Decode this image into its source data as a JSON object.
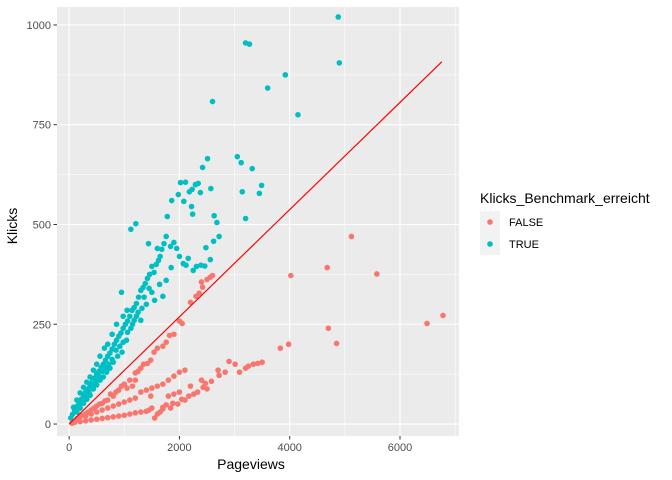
{
  "chart_data": {
    "type": "scatter",
    "title": "",
    "xlabel": "Pageviews",
    "ylabel": "Klicks",
    "xlim": [
      -220,
      7070
    ],
    "ylim": [
      -30,
      1045
    ],
    "x_ticks": [
      0,
      2000,
      4000,
      6000
    ],
    "x_tick_labels": [
      "0",
      "2000",
      "4000",
      "6000"
    ],
    "y_ticks": [
      0,
      250,
      500,
      750,
      1000
    ],
    "y_tick_labels": [
      "0",
      "250",
      "500",
      "750",
      "1000"
    ],
    "grid": true,
    "legend": {
      "title": "Klicks_Benchmark_erreicht",
      "position": "right",
      "entries": [
        {
          "label": "FALSE",
          "color": "#F8766D"
        },
        {
          "label": "TRUE",
          "color": "#00BFC4"
        }
      ]
    },
    "series": [
      {
        "name": "FALSE",
        "color": "#F8766D",
        "points": [
          [
            6780,
            272
          ],
          [
            6490,
            252
          ],
          [
            5580,
            376
          ],
          [
            5120,
            470
          ],
          [
            4850,
            202
          ],
          [
            4680,
            392
          ],
          [
            4700,
            240
          ],
          [
            4020,
            372
          ],
          [
            3980,
            200
          ],
          [
            3830,
            190
          ],
          [
            3420,
            152
          ],
          [
            3340,
            150
          ],
          [
            3250,
            145
          ],
          [
            3090,
            130
          ],
          [
            3010,
            150
          ],
          [
            2900,
            157
          ],
          [
            2830,
            130
          ],
          [
            2720,
            122
          ],
          [
            2580,
            107
          ],
          [
            2500,
            88
          ],
          [
            2470,
            102
          ],
          [
            2430,
            92
          ],
          [
            2330,
            80
          ],
          [
            2260,
            75
          ],
          [
            2170,
            70
          ],
          [
            2100,
            60
          ],
          [
            2040,
            62
          ],
          [
            1970,
            50
          ],
          [
            1880,
            52
          ],
          [
            1840,
            40
          ],
          [
            1760,
            48
          ],
          [
            1700,
            38
          ],
          [
            1650,
            30
          ],
          [
            2600,
            372
          ],
          [
            2560,
            368
          ],
          [
            2500,
            362
          ],
          [
            2420,
            343
          ],
          [
            2400,
            356
          ],
          [
            2360,
            328
          ],
          [
            2200,
            305
          ],
          [
            2300,
            320
          ],
          [
            2050,
            252
          ],
          [
            2000,
            258
          ],
          [
            1900,
            225
          ],
          [
            1820,
            222
          ],
          [
            1760,
            205
          ],
          [
            1700,
            195
          ],
          [
            1600,
            190
          ],
          [
            1540,
            180
          ],
          [
            1480,
            160
          ],
          [
            1420,
            152
          ],
          [
            1350,
            150
          ],
          [
            1300,
            140
          ],
          [
            1250,
            132
          ],
          [
            1200,
            128
          ],
          [
            1100,
            110
          ],
          [
            1000,
            100
          ],
          [
            950,
            95
          ],
          [
            1500,
            40
          ],
          [
            1450,
            35
          ],
          [
            1400,
            32
          ],
          [
            1300,
            30
          ],
          [
            1200,
            28
          ],
          [
            1100,
            25
          ],
          [
            1000,
            22
          ],
          [
            900,
            20
          ],
          [
            800,
            18
          ],
          [
            700,
            16
          ],
          [
            600,
            14
          ],
          [
            500,
            12
          ],
          [
            400,
            10
          ],
          [
            300,
            8
          ],
          [
            200,
            6
          ],
          [
            100,
            4
          ],
          [
            50,
            2
          ],
          [
            1200,
            110
          ],
          [
            1150,
            95
          ],
          [
            1050,
            90
          ],
          [
            900,
            85
          ],
          [
            850,
            80
          ],
          [
            800,
            70
          ],
          [
            750,
            75
          ],
          [
            700,
            60
          ],
          [
            650,
            58
          ],
          [
            600,
            52
          ],
          [
            550,
            50
          ],
          [
            500,
            45
          ],
          [
            450,
            40
          ],
          [
            400,
            35
          ],
          [
            350,
            30
          ],
          [
            300,
            26
          ],
          [
            250,
            22
          ],
          [
            200,
            18
          ],
          [
            150,
            14
          ],
          [
            1200,
            65
          ],
          [
            1100,
            60
          ],
          [
            1000,
            55
          ],
          [
            900,
            50
          ],
          [
            800,
            45
          ],
          [
            700,
            40
          ],
          [
            600,
            35
          ],
          [
            500,
            30
          ],
          [
            400,
            25
          ],
          [
            300,
            20
          ],
          [
            1300,
            80
          ],
          [
            1400,
            85
          ],
          [
            1500,
            90
          ],
          [
            1600,
            95
          ],
          [
            1700,
            100
          ],
          [
            1800,
            110
          ],
          [
            1900,
            120
          ],
          [
            2000,
            130
          ],
          [
            2100,
            135
          ],
          [
            1800,
            70
          ],
          [
            1900,
            75
          ],
          [
            2000,
            80
          ],
          [
            2200,
            95
          ],
          [
            2400,
            110
          ],
          [
            2700,
            135
          ],
          [
            3200,
            140
          ],
          [
            3500,
            155
          ],
          [
            1600,
            25
          ],
          [
            1550,
            15
          ],
          [
            1700,
            42
          ],
          [
            1480,
            70
          ]
        ]
      },
      {
        "name": "TRUE",
        "color": "#00BFC4",
        "points": [
          [
            4880,
            1020
          ],
          [
            3200,
            955
          ],
          [
            3270,
            952
          ],
          [
            3920,
            875
          ],
          [
            4900,
            905
          ],
          [
            3600,
            842
          ],
          [
            4150,
            775
          ],
          [
            2600,
            808
          ],
          [
            2510,
            665
          ],
          [
            2420,
            643
          ],
          [
            3050,
            670
          ],
          [
            3120,
            655
          ],
          [
            3320,
            640
          ],
          [
            3140,
            582
          ],
          [
            3450,
            578
          ],
          [
            3490,
            598
          ],
          [
            2340,
            603
          ],
          [
            2290,
            600
          ],
          [
            2230,
            588
          ],
          [
            2110,
            606
          ],
          [
            2020,
            605
          ],
          [
            2570,
            590
          ],
          [
            2180,
            582
          ],
          [
            1980,
            575
          ],
          [
            2080,
            558
          ],
          [
            1860,
            560
          ],
          [
            2380,
            580
          ],
          [
            2220,
            545
          ],
          [
            2240,
            526
          ],
          [
            3200,
            515
          ],
          [
            2630,
            522
          ],
          [
            2680,
            505
          ],
          [
            2720,
            470
          ],
          [
            2620,
            458
          ],
          [
            2560,
            412
          ],
          [
            2480,
            442
          ],
          [
            2460,
            396
          ],
          [
            2390,
            398
          ],
          [
            2310,
            395
          ],
          [
            2250,
            385
          ],
          [
            2160,
            415
          ],
          [
            2120,
            398
          ],
          [
            2070,
            402
          ],
          [
            2000,
            420
          ],
          [
            1950,
            440
          ],
          [
            1900,
            455
          ],
          [
            1840,
            445
          ],
          [
            1780,
            520
          ],
          [
            1760,
            470
          ],
          [
            1720,
            452
          ],
          [
            1680,
            438
          ],
          [
            1650,
            420
          ],
          [
            1620,
            410
          ],
          [
            1580,
            400
          ],
          [
            1540,
            380
          ],
          [
            1500,
            395
          ],
          [
            1460,
            375
          ],
          [
            1420,
            365
          ],
          [
            1380,
            352
          ],
          [
            1340,
            342
          ],
          [
            1300,
            335
          ],
          [
            1260,
            318
          ],
          [
            1220,
            302
          ],
          [
            1180,
            292
          ],
          [
            1140,
            285
          ],
          [
            1100,
            270
          ],
          [
            1060,
            258
          ],
          [
            1020,
            250
          ],
          [
            980,
            240
          ],
          [
            940,
            228
          ],
          [
            900,
            220
          ],
          [
            860,
            210
          ],
          [
            820,
            200
          ],
          [
            780,
            188
          ],
          [
            740,
            178
          ],
          [
            700,
            170
          ],
          [
            660,
            160
          ],
          [
            620,
            150
          ],
          [
            580,
            142
          ],
          [
            540,
            132
          ],
          [
            500,
            125
          ],
          [
            460,
            115
          ],
          [
            420,
            106
          ],
          [
            380,
            98
          ],
          [
            340,
            88
          ],
          [
            300,
            80
          ],
          [
            260,
            72
          ],
          [
            220,
            62
          ],
          [
            180,
            54
          ],
          [
            140,
            44
          ],
          [
            100,
            34
          ],
          [
            60,
            24
          ],
          [
            30,
            15
          ],
          [
            1120,
            488
          ],
          [
            950,
            330
          ],
          [
            1210,
            502
          ],
          [
            1440,
            452
          ],
          [
            1600,
            440
          ],
          [
            1850,
            392
          ],
          [
            1760,
            360
          ],
          [
            1640,
            350
          ],
          [
            1500,
            330
          ],
          [
            1400,
            300
          ],
          [
            1320,
            290
          ],
          [
            1250,
            280
          ],
          [
            1180,
            260
          ],
          [
            1120,
            240
          ],
          [
            1060,
            230
          ],
          [
            980,
            205
          ],
          [
            920,
            195
          ],
          [
            850,
            185
          ],
          [
            780,
            162
          ],
          [
            720,
            150
          ],
          [
            660,
            142
          ],
          [
            600,
            132
          ],
          [
            540,
            120
          ],
          [
            480,
            108
          ],
          [
            420,
            95
          ],
          [
            360,
            80
          ],
          [
            300,
            68
          ],
          [
            240,
            56
          ],
          [
            180,
            46
          ],
          [
            1360,
            318
          ],
          [
            1300,
            260
          ],
          [
            1220,
            270
          ],
          [
            1150,
            250
          ],
          [
            1040,
            210
          ],
          [
            960,
            180
          ],
          [
            880,
            170
          ],
          [
            800,
            155
          ],
          [
            740,
            140
          ],
          [
            680,
            130
          ],
          [
            620,
            118
          ],
          [
            560,
            110
          ],
          [
            500,
            98
          ],
          [
            440,
            88
          ],
          [
            380,
            72
          ],
          [
            320,
            62
          ],
          [
            260,
            52
          ],
          [
            200,
            40
          ],
          [
            140,
            30
          ],
          [
            1550,
            310
          ],
          [
            1450,
            340
          ],
          [
            1700,
            320
          ],
          [
            1050,
            285
          ],
          [
            980,
            270
          ],
          [
            860,
            250
          ],
          [
            780,
            225
          ],
          [
            700,
            200
          ],
          [
            640,
            190
          ],
          [
            560,
            170
          ],
          [
            500,
            150
          ],
          [
            440,
            135
          ],
          [
            380,
            118
          ],
          [
            320,
            105
          ],
          [
            260,
            92
          ],
          [
            200,
            78
          ],
          [
            140,
            60
          ],
          [
            80,
            42
          ]
        ]
      }
    ],
    "reference_line": {
      "color": "#FF0000",
      "from": [
        0,
        0
      ],
      "to": [
        6760,
        908
      ]
    },
    "background": "#EBEBEB",
    "grid_color": "#FFFFFF"
  }
}
